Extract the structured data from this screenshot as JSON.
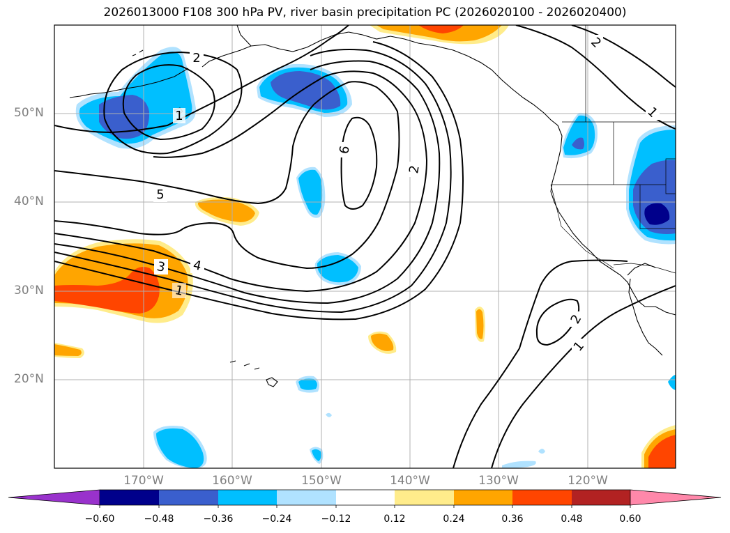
{
  "title": "2026013000 F108 300 hPa PV, river basin precipitation PC (2026020100 - 2026020400)",
  "lat_labels": [
    "50°N",
    "40°N",
    "30°N",
    "20°N"
  ],
  "lon_labels": [
    "170°W",
    "160°W",
    "150°W",
    "140°W",
    "130°W",
    "120°W"
  ],
  "contour_labels": [
    "2",
    "1",
    "5",
    "6",
    "2",
    "4",
    "3",
    "1",
    "2",
    "1",
    "2",
    "1"
  ],
  "colorbar": {
    "ticks": [
      "−0.60",
      "−0.48",
      "−0.36",
      "−0.24",
      "−0.12",
      "0.12",
      "0.24",
      "0.36",
      "0.48",
      "0.60"
    ],
    "colors": [
      "#9932cc",
      "#00008b",
      "#3a5fcd",
      "#00bfff",
      "#b0e2ff",
      "#ffffff",
      "#ffec8b",
      "#ffa500",
      "#ff4500",
      "#b22222",
      "#ff88aa"
    ]
  },
  "colors": {
    "contour": "#000000",
    "grid": "#b0b0b0",
    "label": "#7f7f7f"
  }
}
